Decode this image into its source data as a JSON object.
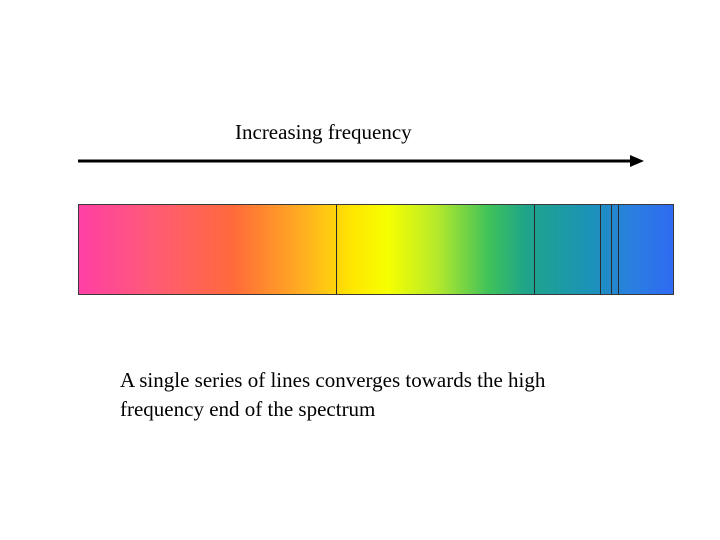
{
  "arrow": {
    "label": "Increasing frequency",
    "color": "#000000"
  },
  "spectrum": {
    "gradient_colors": [
      "#ff3fa5",
      "#ff6a3a",
      "#ffb020",
      "#ffe600",
      "#b8ea2a",
      "#3fc25a",
      "#1b93b8",
      "#2f6af2"
    ],
    "line_count": 4,
    "line_color": "#2a2a2a"
  },
  "caption": {
    "line1": "A single series of lines converges towards the high",
    "line2": "frequency end of the spectrum"
  }
}
